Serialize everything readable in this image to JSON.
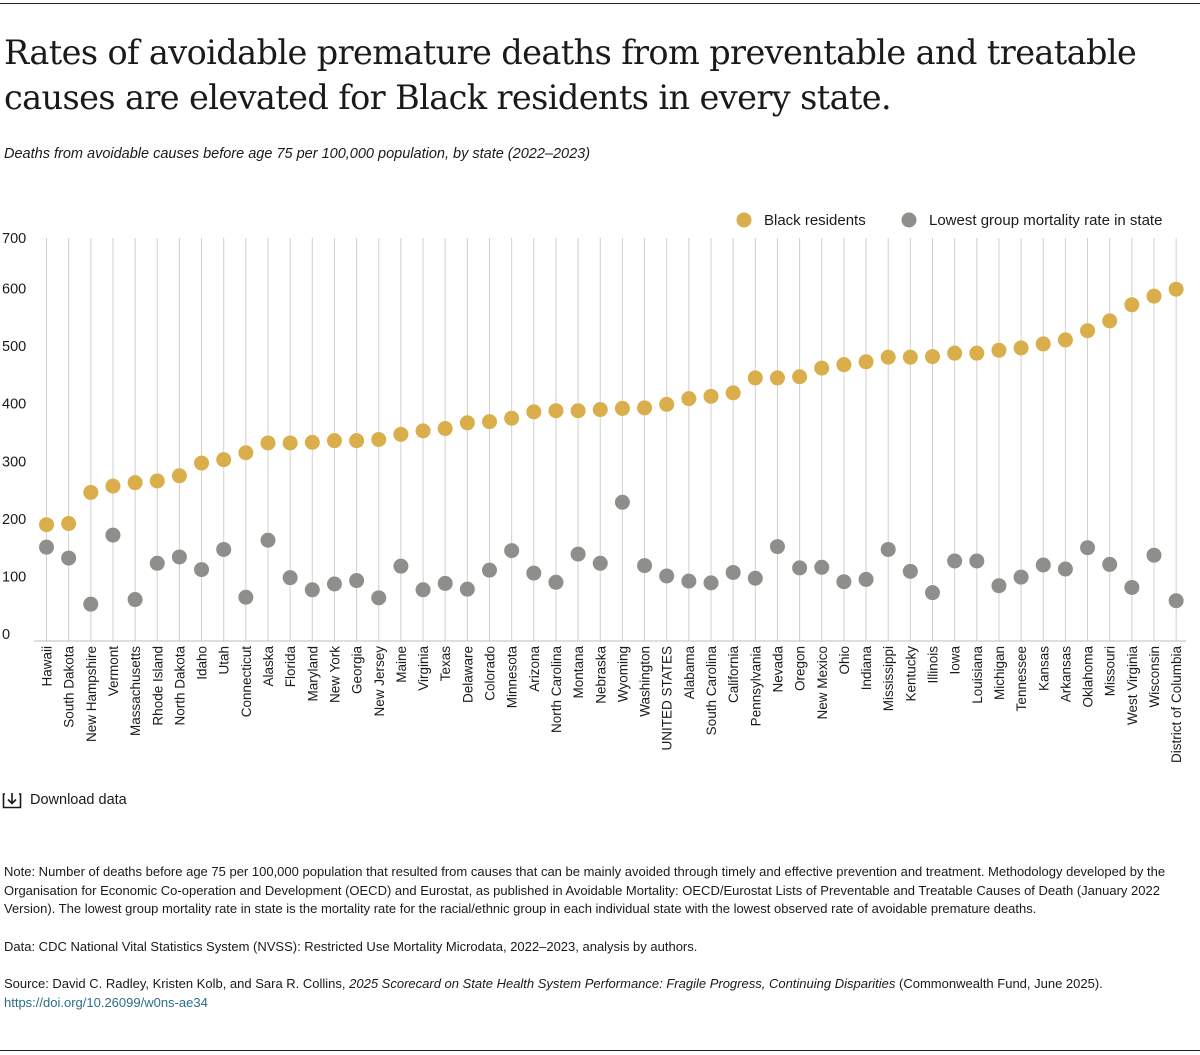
{
  "title": "Rates of avoidable premature deaths from preventable and treatable causes are elevated for Black residents in every state.",
  "subtitle": "Deaths from avoidable causes before age 75 per 100,000 population, by state (2022–2023)",
  "download_label": "Download data",
  "note": "Note: Number of deaths before age 75 per 100,000 population that resulted from causes that can be mainly avoided through timely and effective prevention and treatment. Methodology developed by the Organisation for Economic Co-operation and Development (OECD) and Eurostat, as published in Avoidable Mortality: OECD/Eurostat Lists of Preventable and Treatable Causes of Death (January 2022 Version). The lowest group mortality rate in state is the mortality rate for the racial/ethnic group in each individual state with the lowest observed rate of avoidable premature deaths.",
  "data_source": "Data: CDC National Vital Statistics System (NVSS): Restricted Use Mortality Microdata, 2022–2023, analysis by authors.",
  "source": {
    "prefix": "Source: David C. Radley, Kristen Kolb, and Sara R. Collins, ",
    "publication": "2025 Scorecard on State Health System Performance: Fragile Progress, Continuing Disparities",
    "suffix": " (Commonwealth Fund, June 2025).",
    "link": "https://doi.org/10.26099/w0ns-ae34"
  },
  "colors": {
    "black_residents": "#D9AE4B",
    "lowest_group": "#8E8E8A",
    "grid": "#D0D0D0",
    "axis": "#BDBDBD"
  },
  "chart_data": {
    "type": "scatter",
    "ylim": [
      0,
      700
    ],
    "yticks": [
      0,
      100,
      200,
      300,
      400,
      500,
      600,
      700
    ],
    "legend_position": "top-right",
    "categories": [
      "Hawaii",
      "South Dakota",
      "New Hampshire",
      "Vermont",
      "Massachusetts",
      "Rhode Island",
      "North Dakota",
      "Idaho",
      "Utah",
      "Connecticut",
      "Alaska",
      "Florida",
      "Maryland",
      "New York",
      "Georgia",
      "New Jersey",
      "Maine",
      "Virginia",
      "Texas",
      "Delaware",
      "Colorado",
      "Minnesota",
      "Arizona",
      "North Carolina",
      "Montana",
      "Nebraska",
      "Wyoming",
      "Washington",
      "UNITED STATES",
      "Alabama",
      "South Carolina",
      "California",
      "Pennsylvania",
      "Nevada",
      "Oregon",
      "New Mexico",
      "Ohio",
      "Indiana",
      "Mississippi",
      "Kentucky",
      "Illinois",
      "Iowa",
      "Louisiana",
      "Michigan",
      "Tennessee",
      "Kansas",
      "Arkansas",
      "Oklahoma",
      "Missouri",
      "West Virginia",
      "Wisconsin",
      "District of Columbia"
    ],
    "series": [
      {
        "name": "Black residents",
        "values": [
          202,
          204,
          258,
          269,
          275,
          278,
          287,
          309,
          315,
          327,
          344,
          344,
          345,
          348,
          348,
          350,
          359,
          365,
          369,
          379,
          381,
          387,
          398,
          400,
          400,
          402,
          404,
          405,
          411,
          421,
          425,
          431,
          457,
          457,
          459,
          474,
          480,
          485,
          493,
          493,
          494,
          500,
          500,
          505,
          509,
          516,
          523,
          539,
          556,
          584,
          599,
          611
        ]
      },
      {
        "name": "Lowest group mortality rate in state",
        "values": [
          163,
          144,
          64,
          184,
          72,
          135,
          146,
          124,
          159,
          76,
          175,
          110,
          89,
          99,
          105,
          75,
          130,
          89,
          100,
          90,
          123,
          157,
          118,
          102,
          151,
          135,
          241,
          131,
          113,
          104,
          101,
          119,
          109,
          164,
          127,
          128,
          103,
          107,
          159,
          121,
          84,
          139,
          139,
          96,
          111,
          132,
          125,
          162,
          133,
          93,
          149,
          70
        ]
      }
    ]
  }
}
